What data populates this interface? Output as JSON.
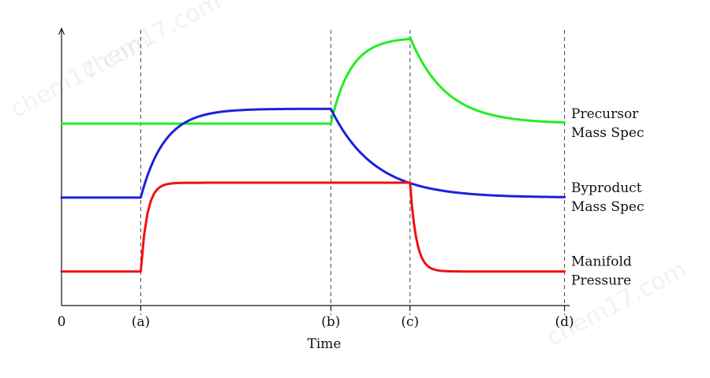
{
  "chart_data": {
    "type": "line",
    "title": "",
    "xlabel": "Time",
    "ylabel": "",
    "grid": false,
    "x_ticks": [
      {
        "label": "0",
        "t": 0
      },
      {
        "label": "(a)",
        "t": 1
      },
      {
        "label": "(b)",
        "t": 3.4
      },
      {
        "label": "(c)",
        "t": 4.4
      },
      {
        "label": "(d)",
        "t": 6.35
      }
    ],
    "event_markers": [
      1,
      3.4,
      4.4,
      6.35
    ],
    "xlim": [
      0,
      6.4
    ],
    "series": [
      {
        "name": "Precursor Mass Spec",
        "label_lines": [
          "Precursor",
          "Mass Spec"
        ],
        "color": "#22ee22",
        "baseline": 0.62,
        "high": 0.97,
        "segments": [
          {
            "from": 0,
            "to": 3.4,
            "type": "hold",
            "value": 0.62
          },
          {
            "from": 3.4,
            "to": 4.4,
            "type": "rise",
            "tau": 0.25,
            "start": 0.62,
            "target": 0.97
          },
          {
            "from": 4.4,
            "to": 6.35,
            "type": "decay",
            "tau": 0.45,
            "start": 0.97,
            "target": 0.62
          }
        ]
      },
      {
        "name": "Byproduct Mass Spec",
        "label_lines": [
          "Byproduct",
          "Mass Spec"
        ],
        "color": "#1a22dd",
        "baseline": 0.32,
        "high": 0.68,
        "segments": [
          {
            "from": 0,
            "to": 1,
            "type": "hold",
            "value": 0.32
          },
          {
            "from": 1,
            "to": 3.4,
            "type": "rise",
            "tau": 0.3,
            "start": 0.32,
            "target": 0.68
          },
          {
            "from": 3.4,
            "to": 6.35,
            "type": "decay",
            "tau": 0.55,
            "start": 0.68,
            "target": 0.32
          }
        ]
      },
      {
        "name": "Manifold Pressure",
        "label_lines": [
          "Manifold",
          "Pressure"
        ],
        "color": "#ee1111",
        "baseline": 0.02,
        "high": 0.38,
        "segments": [
          {
            "from": 0,
            "to": 1,
            "type": "hold",
            "value": 0.02
          },
          {
            "from": 1,
            "to": 4.4,
            "type": "rise",
            "tau": 0.08,
            "start": 0.02,
            "target": 0.38
          },
          {
            "from": 4.4,
            "to": 6.35,
            "type": "decay",
            "tau": 0.08,
            "start": 0.38,
            "target": 0.02
          }
        ]
      }
    ]
  },
  "watermarks": [
    "chem17.com",
    "chem17.com",
    "chem17.com"
  ]
}
